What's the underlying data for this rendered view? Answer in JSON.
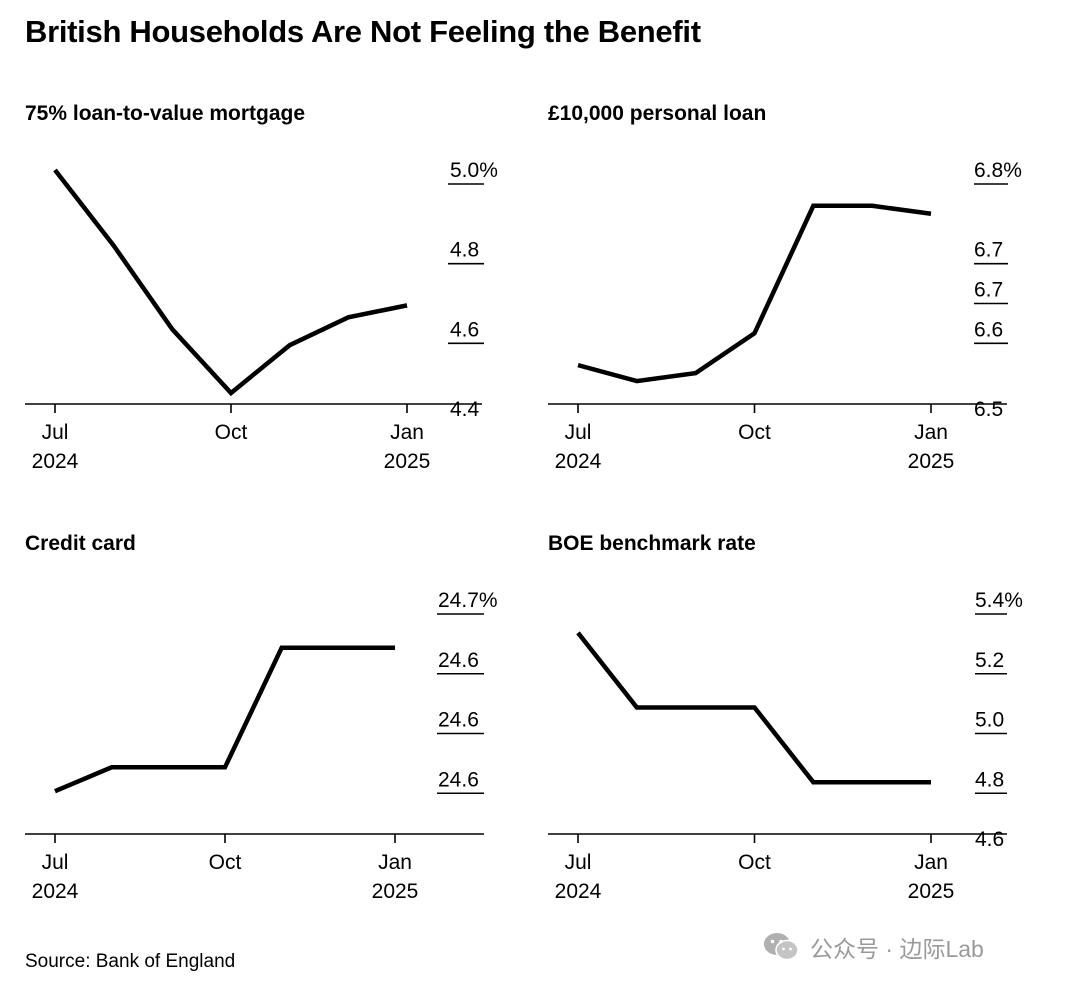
{
  "title": "British Households Are Not Feeling the Benefit",
  "source": "Source: Bank of England",
  "watermark": "公众号 · 边际Lab",
  "colors": {
    "line": "#000000",
    "axis": "#000000",
    "text": "#000000",
    "watermark": "#9a9a9a"
  },
  "chart_data": [
    {
      "type": "line",
      "title": "75% loan-to-value mortgage",
      "x": [
        "2024-07",
        "2024-08",
        "2024-09",
        "2024-10",
        "2024-11",
        "2024-12",
        "2025-01"
      ],
      "x_ticks": [
        {
          "x": "2024-07",
          "label": "Jul",
          "sub": "2024"
        },
        {
          "x": "2024-10",
          "label": "Oct",
          "sub": ""
        },
        {
          "x": "2025-01",
          "label": "Jan",
          "sub": "2025"
        }
      ],
      "series": [
        {
          "values": [
            4.97,
            4.78,
            4.57,
            4.41,
            4.53,
            4.6,
            4.63
          ]
        }
      ],
      "y_ticks": [
        {
          "v": 5.0,
          "label": "5.0%"
        },
        {
          "v": 4.8,
          "label": "4.8"
        },
        {
          "v": 4.6,
          "label": "4.6"
        },
        {
          "v": 4.4,
          "label": "4.4"
        }
      ],
      "ylim": [
        4.4,
        5.0
      ],
      "grid": false,
      "xlabel": "",
      "ylabel": ""
    },
    {
      "type": "line",
      "title": "£10,000 personal loan",
      "x": [
        "2024-07",
        "2024-08",
        "2024-09",
        "2024-10",
        "2024-11",
        "2024-12",
        "2025-01"
      ],
      "x_ticks": [
        {
          "x": "2024-07",
          "label": "Jul",
          "sub": "2024"
        },
        {
          "x": "2024-10",
          "label": "Oct",
          "sub": ""
        },
        {
          "x": "2025-01",
          "label": "Jan",
          "sub": "2025"
        }
      ],
      "series": [
        {
          "values": [
            6.54,
            6.52,
            6.53,
            6.58,
            6.74,
            6.74,
            6.73
          ]
        }
      ],
      "y_ticks": [
        {
          "v": 6.8,
          "label": "6.8%"
        },
        {
          "v": 6.7,
          "label": "6.7"
        },
        {
          "v": 6.65,
          "label": "6.7"
        },
        {
          "v": 6.6,
          "label": "6.6"
        },
        {
          "v": 6.5,
          "label": "6.5"
        }
      ],
      "ylim": [
        6.5,
        6.8
      ],
      "grid": false,
      "xlabel": "",
      "ylabel": ""
    },
    {
      "type": "line",
      "title": "Credit card",
      "x": [
        "2024-07",
        "2024-08",
        "2024-09",
        "2024-10",
        "2024-11",
        "2024-12",
        "2025-01"
      ],
      "x_ticks": [
        {
          "x": "2024-07",
          "label": "Jul",
          "sub": "2024"
        },
        {
          "x": "2024-10",
          "label": "Oct",
          "sub": ""
        },
        {
          "x": "2025-01",
          "label": "Jan",
          "sub": "2025"
        }
      ],
      "series": [
        {
          "values": [
            24.53,
            24.55,
            24.55,
            24.55,
            24.65,
            24.65,
            24.65
          ]
        }
      ],
      "y_ticks": [
        {
          "v": 24.7,
          "label": "24.7%"
        },
        {
          "v": 24.65,
          "label": "24.6"
        },
        {
          "v": 24.6,
          "label": "24.6"
        },
        {
          "v": 24.55,
          "label": "24.6"
        }
      ],
      "ylim": [
        24.5,
        24.7
      ],
      "grid": false,
      "xlabel": "",
      "ylabel": ""
    },
    {
      "type": "line",
      "title": "BOE benchmark rate",
      "x": [
        "2024-07",
        "2024-08",
        "2024-09",
        "2024-10",
        "2024-11",
        "2024-12",
        "2025-01"
      ],
      "x_ticks": [
        {
          "x": "2024-07",
          "label": "Jul",
          "sub": "2024"
        },
        {
          "x": "2024-10",
          "label": "Oct",
          "sub": ""
        },
        {
          "x": "2025-01",
          "label": "Jan",
          "sub": "2025"
        }
      ],
      "series": [
        {
          "values": [
            5.25,
            5.0,
            5.0,
            5.0,
            4.75,
            4.75,
            4.75
          ]
        }
      ],
      "y_ticks": [
        {
          "v": 5.4,
          "label": "5.4%"
        },
        {
          "v": 5.2,
          "label": "5.2"
        },
        {
          "v": 5.0,
          "label": "5.0"
        },
        {
          "v": 4.8,
          "label": "4.8"
        },
        {
          "v": 4.6,
          "label": "4.6"
        }
      ],
      "ylim": [
        4.6,
        5.4
      ],
      "grid": false,
      "xlabel": "",
      "ylabel": ""
    }
  ]
}
